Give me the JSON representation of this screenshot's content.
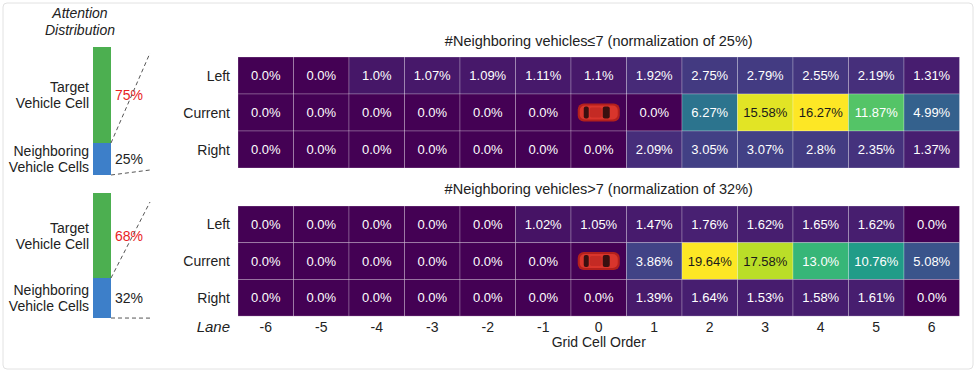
{
  "chart_data": [
    {
      "type": "heatmap",
      "title": "#Neighboring vehicles≤7 (normalization of 25%)",
      "x": [
        -6,
        -5,
        -4,
        -3,
        -2,
        -1,
        0,
        1,
        2,
        3,
        4,
        5,
        6
      ],
      "y_categories": [
        "Left",
        "Current",
        "Right"
      ],
      "cells": [
        [
          0.0,
          0.0,
          1.0,
          1.07,
          1.09,
          1.11,
          1.1,
          1.92,
          2.75,
          2.79,
          2.55,
          2.19,
          1.31
        ],
        [
          0.0,
          0.0,
          0.0,
          0.0,
          0.0,
          0.0,
          null,
          0.0,
          6.27,
          15.58,
          16.27,
          11.87,
          4.99
        ],
        [
          0.0,
          0.0,
          0.0,
          0.0,
          0.0,
          0.0,
          0.0,
          2.09,
          3.05,
          3.07,
          2.8,
          2.35,
          1.37
        ]
      ],
      "value_labels": [
        [
          "0.0%",
          "0.0%",
          "1.0%",
          "1.07%",
          "1.09%",
          "1.11%",
          "1.1%",
          "1.92%",
          "2.75%",
          "2.79%",
          "2.55%",
          "2.19%",
          "1.31%"
        ],
        [
          "0.0%",
          "0.0%",
          "0.0%",
          "0.0%",
          "0.0%",
          "0.0%",
          null,
          "0.0%",
          "6.27%",
          "15.58%",
          "16.27%",
          "11.87%",
          "4.99%"
        ],
        [
          "0.0%",
          "0.0%",
          "0.0%",
          "0.0%",
          "0.0%",
          "0.0%",
          "0.0%",
          "2.09%",
          "3.05%",
          "3.07%",
          "2.8%",
          "2.35%",
          "1.37%"
        ]
      ],
      "zlim": [
        0,
        16.27
      ],
      "tick_labels": "y",
      "attention": {
        "title": "Attention Distribution",
        "categories": [
          "Target Vehicle Cell",
          "Neighboring Vehicle Cells"
        ],
        "values": [
          75,
          25
        ],
        "value_labels": [
          "75%",
          "25%"
        ],
        "colors": [
          "#4caf50",
          "#3d7fc9"
        ],
        "ylim": [
          0,
          100
        ],
        "stacked": true
      }
    },
    {
      "type": "heatmap",
      "title": "#Neighboring vehicles>7 (normalization of 32%)",
      "x": [
        -6,
        -5,
        -4,
        -3,
        -2,
        -1,
        0,
        1,
        2,
        3,
        4,
        5,
        6
      ],
      "y_categories": [
        "Left",
        "Current",
        "Right"
      ],
      "cells": [
        [
          0.0,
          0.0,
          0.0,
          0.0,
          0.0,
          1.02,
          1.05,
          1.47,
          1.76,
          1.62,
          1.65,
          1.62,
          0.0
        ],
        [
          0.0,
          0.0,
          0.0,
          0.0,
          0.0,
          0.0,
          null,
          3.86,
          19.64,
          17.58,
          13.0,
          10.76,
          5.08
        ],
        [
          0.0,
          0.0,
          0.0,
          0.0,
          0.0,
          0.0,
          0.0,
          1.39,
          1.64,
          1.53,
          1.58,
          1.61,
          0.0
        ]
      ],
      "value_labels": [
        [
          "0.0%",
          "0.0%",
          "0.0%",
          "0.0%",
          "0.0%",
          "1.02%",
          "1.05%",
          "1.47%",
          "1.76%",
          "1.62%",
          "1.65%",
          "1.62%",
          "0.0%"
        ],
        [
          "0.0%",
          "0.0%",
          "0.0%",
          "0.0%",
          "0.0%",
          "0.0%",
          null,
          "3.86%",
          "19.64%",
          "17.58%",
          "13.0%",
          "10.76%",
          "5.08%"
        ],
        [
          "0.0%",
          "0.0%",
          "0.0%",
          "0.0%",
          "0.0%",
          "0.0%",
          "0.0%",
          "1.39%",
          "1.64%",
          "1.53%",
          "1.58%",
          "1.61%",
          "0.0%"
        ]
      ],
      "zlim": [
        0,
        19.64
      ],
      "x_label": "Grid Cell Order",
      "y_label": "Lane",
      "attention": {
        "categories": [
          "Target Vehicle Cell",
          "Neighboring Vehicle Cells"
        ],
        "values": [
          68,
          32
        ],
        "value_labels": [
          "68%",
          "32%"
        ],
        "colors": [
          "#4caf50",
          "#3d7fc9"
        ],
        "ylim": [
          0,
          100
        ],
        "stacked": true
      }
    }
  ]
}
